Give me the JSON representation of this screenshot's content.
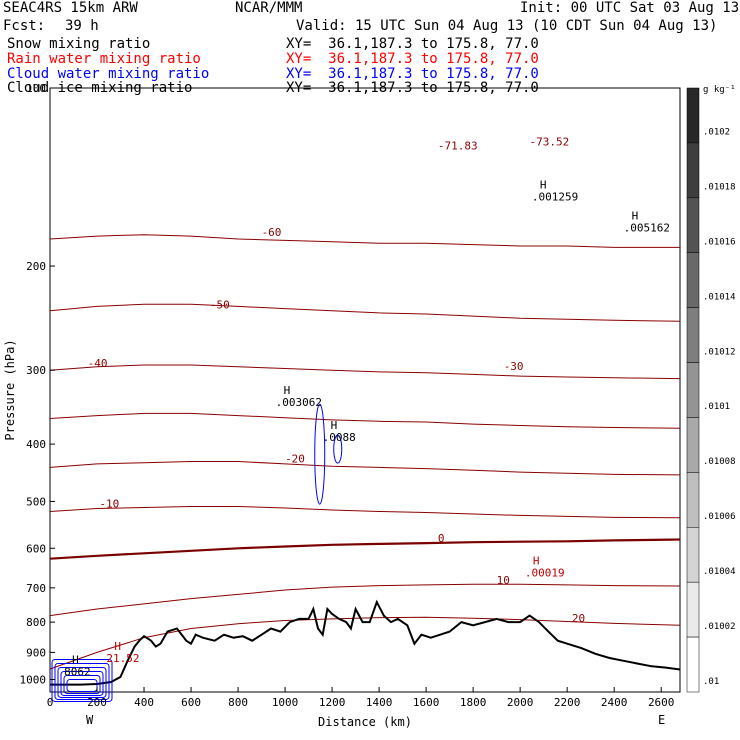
{
  "header": {
    "model": "SEAC4RS 15km ARW",
    "org": "NCAR/MMM",
    "init": "Init: 00 UTC Sat 03 Aug 13",
    "fcst_label": "Fcst:",
    "fcst_value": "39 h",
    "valid": "Valid: 15 UTC Sun 04 Aug 13 (10 CDT Sun 04 Aug 13)"
  },
  "legend": [
    {
      "name": "Snow mixing ratio",
      "color": "#000000",
      "xy": "XY=  36.1,187.3 to 175.8, 77.0"
    },
    {
      "name": "Rain water mixing ratio",
      "color": "#ff0000",
      "xy": "XY=  36.1,187.3 to 175.8, 77.0"
    },
    {
      "name": "Cloud water mixing ratio",
      "color": "#0000ff",
      "xy": "XY=  36.1,187.3 to 175.8, 77.0"
    },
    {
      "name": "Cloud ice mixing ratio",
      "color": "#000000",
      "xy": "XY=  36.1,187.3 to 175.8, 77.0"
    }
  ],
  "colors": {
    "temperature": "#8b0000",
    "freezing_level": "#7a0000",
    "terrain": "#000000",
    "cloud_water": "#0000ff",
    "annotation_red": "#c00000"
  },
  "chart_data": {
    "type": "line",
    "xlabel": "Distance (km)",
    "ylabel": "Pressure (hPa)",
    "xlim": [
      0,
      2680
    ],
    "ylim": [
      1050,
      100
    ],
    "y_scale": "log",
    "x_ticks": [
      0,
      200,
      400,
      600,
      800,
      1000,
      1200,
      1400,
      1600,
      1800,
      2000,
      2200,
      2400,
      2600
    ],
    "y_ticks": [
      100,
      200,
      300,
      400,
      500,
      600,
      700,
      800,
      900,
      1000
    ],
    "orientation_labels": {
      "west": "W",
      "east": "E"
    },
    "terrain_pressure": {
      "x": [
        0,
        130,
        200,
        260,
        300,
        330,
        360,
        380,
        400,
        430,
        450,
        470,
        500,
        540,
        580,
        600,
        620,
        650,
        700,
        740,
        780,
        820,
        860,
        900,
        940,
        980,
        1020,
        1060,
        1100,
        1120,
        1140,
        1160,
        1180,
        1200,
        1230,
        1260,
        1280,
        1300,
        1330,
        1360,
        1390,
        1420,
        1450,
        1480,
        1520,
        1550,
        1580,
        1620,
        1660,
        1700,
        1750,
        1800,
        1850,
        1900,
        1950,
        2000,
        2040,
        2080,
        2120,
        2160,
        2200,
        2260,
        2320,
        2380,
        2440,
        2500,
        2560,
        2620,
        2680
      ],
      "values": [
        1020,
        1020,
        1018,
        1010,
        990,
        930,
        880,
        860,
        845,
        860,
        880,
        870,
        830,
        820,
        860,
        870,
        840,
        850,
        860,
        840,
        850,
        845,
        860,
        840,
        820,
        830,
        800,
        790,
        790,
        760,
        820,
        840,
        760,
        775,
        790,
        800,
        820,
        760,
        800,
        800,
        740,
        780,
        800,
        790,
        810,
        870,
        840,
        850,
        840,
        830,
        800,
        810,
        800,
        790,
        800,
        800,
        780,
        800,
        830,
        860,
        870,
        885,
        905,
        920,
        930,
        940,
        950,
        955,
        962
      ]
    },
    "isotherms": [
      {
        "value": -60,
        "pressure": [
          180,
          178,
          177,
          178,
          180,
          181,
          182,
          183,
          183,
          184,
          185,
          185,
          186,
          186
        ]
      },
      {
        "value": -50,
        "pressure": [
          238,
          234,
          232,
          232,
          234,
          236,
          238,
          240,
          241,
          243,
          245,
          246,
          247,
          248
        ]
      },
      {
        "value": -40,
        "pressure": [
          300,
          296,
          294,
          294,
          296,
          298,
          300,
          302,
          303,
          305,
          307,
          308,
          309,
          310
        ]
      },
      {
        "value": -30,
        "pressure": [
          362,
          358,
          355,
          355,
          358,
          361,
          364,
          366,
          367,
          370,
          372,
          374,
          375,
          376
        ]
      },
      {
        "value": -20,
        "pressure": [
          438,
          432,
          430,
          428,
          428,
          432,
          436,
          438,
          440,
          443,
          446,
          448,
          450,
          451
        ]
      },
      {
        "value": -10,
        "pressure": [
          520,
          514,
          512,
          510,
          510,
          513,
          517,
          520,
          522,
          525,
          528,
          530,
          532,
          533
        ]
      },
      {
        "value": 0,
        "pressure": [
          625,
          618,
          612,
          606,
          600,
          596,
          592,
          590,
          588,
          586,
          585,
          584,
          582,
          580
        ]
      },
      {
        "value": 10,
        "pressure": [
          780,
          760,
          745,
          730,
          718,
          706,
          698,
          694,
          692,
          690,
          690,
          692,
          694,
          695
        ]
      },
      {
        "value": 20,
        "pressure": [
          960,
          900,
          850,
          820,
          805,
          795,
          790,
          786,
          785,
          788,
          792,
          798,
          804,
          810
        ]
      }
    ],
    "isotherm_x": [
      0,
      200,
      400,
      600,
      800,
      1000,
      1200,
      1400,
      1600,
      1800,
      2000,
      2200,
      2400,
      2680
    ],
    "annotations": [
      {
        "label": "-60",
        "x": 900,
        "p": 178,
        "kind": "contour-label"
      },
      {
        "label": "-50",
        "x": 680,
        "p": 236,
        "kind": "contour-label"
      },
      {
        "label": "-40",
        "x": 160,
        "p": 296,
        "kind": "contour-label"
      },
      {
        "label": "-30",
        "x": 1930,
        "p": 300,
        "kind": "contour-label"
      },
      {
        "label": "-20",
        "x": 1000,
        "p": 430,
        "kind": "contour-label"
      },
      {
        "label": "-10",
        "x": 210,
        "p": 512,
        "kind": "contour-label"
      },
      {
        "label": "0",
        "x": 1650,
        "p": 586,
        "kind": "contour-label"
      },
      {
        "label": "10",
        "x": 1900,
        "p": 690,
        "kind": "contour-label"
      },
      {
        "label": "20",
        "x": 2220,
        "p": 800,
        "kind": "contour-label"
      },
      {
        "label": "-71.83",
        "x": 1650,
        "p": 127,
        "kind": "extreme"
      },
      {
        "label": "-73.52",
        "x": 2040,
        "p": 125,
        "kind": "extreme"
      },
      {
        "label": ".001259",
        "x": 2050,
        "p": 155,
        "kind": "max"
      },
      {
        "label": ".005162",
        "x": 2440,
        "p": 175,
        "kind": "max"
      },
      {
        "label": ".003062",
        "x": 960,
        "p": 345,
        "kind": "max"
      },
      {
        "label": ".0088",
        "x": 1160,
        "p": 395,
        "kind": "max"
      },
      {
        "label": "21.52",
        "x": 240,
        "p": 935,
        "kind": "max"
      },
      {
        "label": "8062",
        "x": 60,
        "p": 985,
        "kind": "max"
      },
      {
        "label": ".00019",
        "x": 2020,
        "p": 670,
        "kind": "max"
      }
    ],
    "colorbar": {
      "unit": "g kg⁻¹",
      "labels": [
        ".0102",
        ".01018",
        ".01016",
        ".01014",
        ".01012",
        ".0101",
        ".01008",
        ".01006",
        ".01004",
        ".01002",
        ".01"
      ]
    }
  }
}
